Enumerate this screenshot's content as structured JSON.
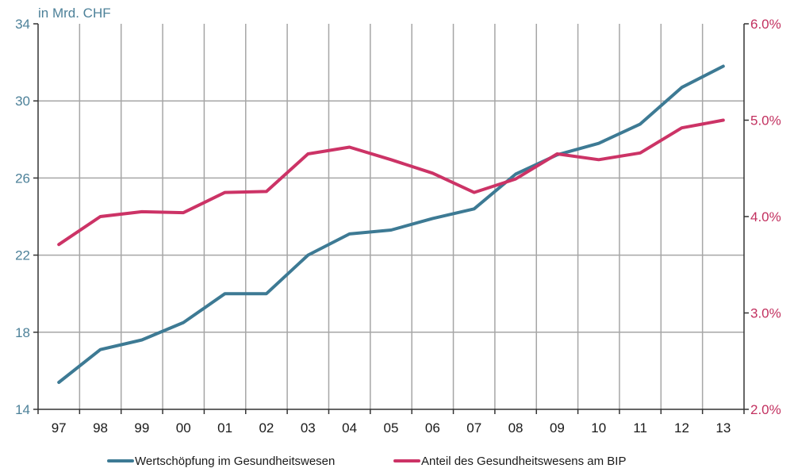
{
  "chart_data": {
    "type": "line",
    "left_axis_unit": "in Mrd. CHF",
    "categories": [
      "97",
      "98",
      "99",
      "00",
      "01",
      "02",
      "03",
      "04",
      "05",
      "06",
      "07",
      "08",
      "09",
      "10",
      "11",
      "12",
      "13"
    ],
    "y_left": {
      "ticks": [
        "14",
        "18",
        "22",
        "26",
        "30",
        "34"
      ],
      "ylim": [
        14,
        34
      ]
    },
    "y_right": {
      "ticks": [
        "2.0%",
        "3.0%",
        "4.0%",
        "5.0%",
        "6.0%"
      ],
      "ylim": [
        2.0,
        6.0
      ]
    },
    "grid": true,
    "legend_position": "bottom",
    "series": [
      {
        "name": "Wertschöpfung im Gesundheitswesen",
        "axis": "left",
        "color": "#3d7a94",
        "values": [
          15.4,
          17.1,
          17.6,
          18.5,
          20.0,
          20.0,
          22.0,
          23.1,
          23.3,
          23.9,
          24.4,
          26.2,
          27.2,
          27.8,
          28.8,
          30.7,
          31.8
        ]
      },
      {
        "name": "Anteil des Gesundheitswesens am BIP",
        "axis": "right",
        "color": "#cc3366",
        "values": [
          3.71,
          4.0,
          4.05,
          4.04,
          4.25,
          4.26,
          4.65,
          4.72,
          4.59,
          4.45,
          4.25,
          4.39,
          4.65,
          4.59,
          4.66,
          4.92,
          5.0
        ]
      }
    ]
  }
}
